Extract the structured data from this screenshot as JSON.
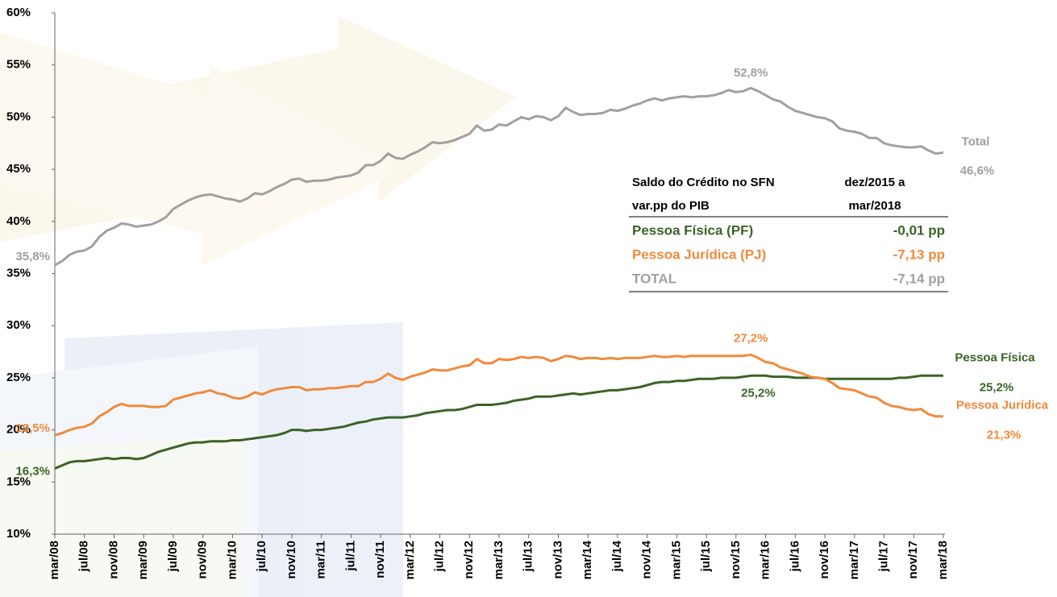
{
  "chart_data": {
    "type": "line",
    "categories": [
      "mar/08",
      null,
      null,
      null,
      "jul/08",
      null,
      null,
      null,
      "nov/08",
      null,
      null,
      null,
      "mar/09",
      null,
      null,
      null,
      "jul/09",
      null,
      null,
      null,
      "nov/09",
      null,
      null,
      null,
      "mar/10",
      null,
      null,
      null,
      "jul/10",
      null,
      null,
      null,
      "nov/10",
      null,
      null,
      null,
      "mar/11",
      null,
      null,
      null,
      "jul/11",
      null,
      null,
      null,
      "nov/11",
      null,
      null,
      null,
      "mar/12",
      null,
      null,
      null,
      "jul/12",
      null,
      null,
      null,
      "nov/12",
      null,
      null,
      null,
      "mar/13",
      null,
      null,
      null,
      "jul/13",
      null,
      null,
      null,
      "nov/13",
      null,
      null,
      null,
      "mar/14",
      null,
      null,
      null,
      "jul/14",
      null,
      null,
      null,
      "nov/14",
      null,
      null,
      null,
      "mar/15",
      null,
      null,
      null,
      "jul/15",
      null,
      null,
      null,
      "nov/15",
      null,
      null,
      null,
      "mar/16",
      null,
      null,
      null,
      "jul/16",
      null,
      null,
      null,
      "nov/16",
      null,
      null,
      null,
      "mar/17",
      null,
      null,
      null,
      "jul/17",
      null,
      null,
      null,
      "nov/17",
      null,
      null,
      null,
      "mar/18"
    ],
    "series": [
      {
        "name": "Total",
        "color": "#a0a0a0",
        "values": [
          35.8,
          36.2,
          36.8,
          37.1,
          37.2,
          37.6,
          38.5,
          39.1,
          39.4,
          39.8,
          39.7,
          39.5,
          39.6,
          39.7,
          40.0,
          40.4,
          41.2,
          41.6,
          42.0,
          42.3,
          42.5,
          42.6,
          42.4,
          42.2,
          42.1,
          41.9,
          42.2,
          42.7,
          42.6,
          42.9,
          43.3,
          43.6,
          44.0,
          44.1,
          43.8,
          43.9,
          43.9,
          44.0,
          44.2,
          44.3,
          44.4,
          44.7,
          45.4,
          45.4,
          45.8,
          46.5,
          46.1,
          46.0,
          46.4,
          46.7,
          47.1,
          47.6,
          47.5,
          47.6,
          47.8,
          48.1,
          48.4,
          49.2,
          48.7,
          48.8,
          49.3,
          49.2,
          49.6,
          50.0,
          49.8,
          50.1,
          50.0,
          49.7,
          50.1,
          50.9,
          50.5,
          50.2,
          50.3,
          50.3,
          50.4,
          50.7,
          50.6,
          50.8,
          51.1,
          51.3,
          51.6,
          51.8,
          51.6,
          51.8,
          51.9,
          52.0,
          51.9,
          52.0,
          52.0,
          52.1,
          52.3,
          52.6,
          52.4,
          52.5,
          52.8,
          52.5,
          52.1,
          51.7,
          51.5,
          51.0,
          50.6,
          50.4,
          50.2,
          50.0,
          49.9,
          49.6,
          48.9,
          48.7,
          48.6,
          48.4,
          48.0,
          48.0,
          47.5,
          47.3,
          47.2,
          47.1,
          47.1,
          47.2,
          46.8,
          46.5,
          46.6
        ],
        "value_labels": [
          "35,8%",
          null,
          null,
          null,
          null,
          null,
          null,
          null,
          null,
          null,
          null,
          null,
          null,
          null,
          null,
          null,
          null,
          null,
          null,
          null,
          null,
          null,
          null,
          null,
          null,
          null,
          null,
          null,
          null,
          null,
          null,
          null,
          null,
          null,
          null,
          null,
          null,
          null,
          null,
          null,
          null,
          null,
          null,
          null,
          null,
          null,
          null,
          null,
          null,
          null,
          null,
          null,
          null,
          null,
          null,
          null,
          null,
          null,
          null,
          null,
          null,
          null,
          null,
          null,
          null,
          null,
          null,
          null,
          null,
          null,
          null,
          null,
          null,
          null,
          null,
          null,
          null,
          null,
          null,
          null,
          null,
          null,
          null,
          null,
          null,
          null,
          null,
          null,
          null,
          null,
          null,
          null,
          null,
          null,
          "52,8%",
          null,
          null,
          null,
          null,
          null,
          null,
          null,
          null,
          null,
          null,
          null,
          null,
          null,
          null,
          null,
          null,
          null,
          null,
          null,
          null,
          null,
          null,
          null,
          null,
          null,
          "46,6%"
        ]
      },
      {
        "name": "Pessoa Física",
        "color": "#3b6328",
        "values": [
          16.3,
          16.6,
          16.9,
          17.0,
          17.0,
          17.1,
          17.2,
          17.3,
          17.2,
          17.3,
          17.3,
          17.2,
          17.3,
          17.6,
          17.9,
          18.1,
          18.3,
          18.5,
          18.7,
          18.8,
          18.8,
          18.9,
          18.9,
          18.9,
          19.0,
          19.0,
          19.1,
          19.2,
          19.3,
          19.4,
          19.5,
          19.7,
          20.0,
          20.0,
          19.9,
          20.0,
          20.0,
          20.1,
          20.2,
          20.3,
          20.5,
          20.7,
          20.8,
          21.0,
          21.1,
          21.2,
          21.2,
          21.2,
          21.3,
          21.4,
          21.6,
          21.7,
          21.8,
          21.9,
          21.9,
          22.0,
          22.2,
          22.4,
          22.4,
          22.4,
          22.5,
          22.6,
          22.8,
          22.9,
          23.0,
          23.2,
          23.2,
          23.2,
          23.3,
          23.4,
          23.5,
          23.4,
          23.5,
          23.6,
          23.7,
          23.8,
          23.8,
          23.9,
          24.0,
          24.1,
          24.3,
          24.5,
          24.6,
          24.6,
          24.7,
          24.7,
          24.8,
          24.9,
          24.9,
          24.9,
          25.0,
          25.0,
          25.0,
          25.1,
          25.2,
          25.2,
          25.2,
          25.1,
          25.1,
          25.1,
          25.0,
          25.0,
          25.0,
          25.0,
          24.9,
          24.9,
          24.9,
          24.9,
          24.9,
          24.9,
          24.9,
          24.9,
          24.9,
          24.9,
          25.0,
          25.0,
          25.1,
          25.2,
          25.2,
          25.2,
          25.2
        ],
        "value_labels": [
          "16,3%",
          null,
          null,
          null,
          null,
          null,
          null,
          null,
          null,
          null,
          null,
          null,
          null,
          null,
          null,
          null,
          null,
          null,
          null,
          null,
          null,
          null,
          null,
          null,
          null,
          null,
          null,
          null,
          null,
          null,
          null,
          null,
          null,
          null,
          null,
          null,
          null,
          null,
          null,
          null,
          null,
          null,
          null,
          null,
          null,
          null,
          null,
          null,
          null,
          null,
          null,
          null,
          null,
          null,
          null,
          null,
          null,
          null,
          null,
          null,
          null,
          null,
          null,
          null,
          null,
          null,
          null,
          null,
          null,
          null,
          null,
          null,
          null,
          null,
          null,
          null,
          null,
          null,
          null,
          null,
          null,
          null,
          null,
          null,
          null,
          null,
          null,
          null,
          null,
          null,
          null,
          null,
          null,
          null,
          null,
          "25,2%",
          null,
          null,
          null,
          null,
          null,
          null,
          null,
          null,
          null,
          null,
          null,
          null,
          null,
          null,
          null,
          null,
          null,
          null,
          null,
          null,
          null,
          null,
          null,
          null,
          "25,2%"
        ]
      },
      {
        "name": "Pessoa Jurídica",
        "color": "#f08a3c",
        "values": [
          19.5,
          19.7,
          20.0,
          20.2,
          20.3,
          20.6,
          21.3,
          21.7,
          22.2,
          22.5,
          22.3,
          22.3,
          22.3,
          22.2,
          22.2,
          22.3,
          22.9,
          23.1,
          23.3,
          23.5,
          23.6,
          23.8,
          23.5,
          23.4,
          23.1,
          23.0,
          23.2,
          23.6,
          23.4,
          23.7,
          23.9,
          24.0,
          24.1,
          24.1,
          23.8,
          23.9,
          23.9,
          24.0,
          24.0,
          24.1,
          24.2,
          24.2,
          24.6,
          24.6,
          24.9,
          25.4,
          25.0,
          24.8,
          25.1,
          25.3,
          25.5,
          25.8,
          25.7,
          25.7,
          25.9,
          26.1,
          26.2,
          26.8,
          26.4,
          26.4,
          26.8,
          26.7,
          26.8,
          27.0,
          26.9,
          27.0,
          26.9,
          26.6,
          26.8,
          27.1,
          27.0,
          26.8,
          26.9,
          26.9,
          26.8,
          26.9,
          26.8,
          26.9,
          26.9,
          26.9,
          27.0,
          27.1,
          27.0,
          27.0,
          27.1,
          27.0,
          27.1,
          27.1,
          27.1,
          27.1,
          27.1,
          27.1,
          27.1,
          27.1,
          27.2,
          26.9,
          26.5,
          26.4,
          26.0,
          25.8,
          25.6,
          25.4,
          25.1,
          25.0,
          24.9,
          24.5,
          24.0,
          23.9,
          23.8,
          23.5,
          23.2,
          23.1,
          22.6,
          22.3,
          22.2,
          22.0,
          21.9,
          22.0,
          21.5,
          21.3,
          21.3
        ],
        "value_labels": [
          "19,5%",
          null,
          null,
          null,
          null,
          null,
          null,
          null,
          null,
          null,
          null,
          null,
          null,
          null,
          null,
          null,
          null,
          null,
          null,
          null,
          null,
          null,
          null,
          null,
          null,
          null,
          null,
          null,
          null,
          null,
          null,
          null,
          null,
          null,
          null,
          null,
          null,
          null,
          null,
          null,
          null,
          null,
          null,
          null,
          null,
          null,
          null,
          null,
          null,
          null,
          null,
          null,
          null,
          null,
          null,
          null,
          null,
          null,
          null,
          null,
          null,
          null,
          null,
          null,
          null,
          null,
          null,
          null,
          null,
          null,
          null,
          null,
          null,
          null,
          null,
          null,
          null,
          null,
          null,
          null,
          null,
          null,
          null,
          null,
          null,
          null,
          null,
          null,
          null,
          null,
          null,
          null,
          null,
          null,
          "27,2%",
          null,
          null,
          null,
          null,
          null,
          null,
          null,
          null,
          null,
          null,
          null,
          null,
          null,
          null,
          null,
          null,
          null,
          null,
          null,
          null,
          null,
          null,
          null,
          null,
          null,
          "21,3%"
        ]
      }
    ],
    "ylim": [
      10,
      60
    ],
    "yticks": [
      {
        "value": 10,
        "label": "10%"
      },
      {
        "value": 15,
        "label": "15%"
      },
      {
        "value": 20,
        "label": "20%"
      },
      {
        "value": 25,
        "label": "25%"
      },
      {
        "value": 30,
        "label": "30%"
      },
      {
        "value": 35,
        "label": "35%"
      },
      {
        "value": 40,
        "label": "40%"
      },
      {
        "value": 45,
        "label": "45%"
      },
      {
        "value": 50,
        "label": "50%"
      },
      {
        "value": 55,
        "label": "55%"
      },
      {
        "value": 60,
        "label": "60%"
      }
    ],
    "grid": false
  },
  "table": {
    "header": [
      [
        "Saldo do Crédito no SFN",
        "dez/2015 a"
      ],
      [
        "var.pp do PIB",
        "mar/2018"
      ]
    ],
    "rows": [
      [
        "Pessoa Física (PF)",
        "-0,01 pp"
      ],
      [
        "Pessoa Jurídica (PJ)",
        "-7,13 pp"
      ],
      [
        "TOTAL",
        "-7,14 pp"
      ]
    ]
  }
}
